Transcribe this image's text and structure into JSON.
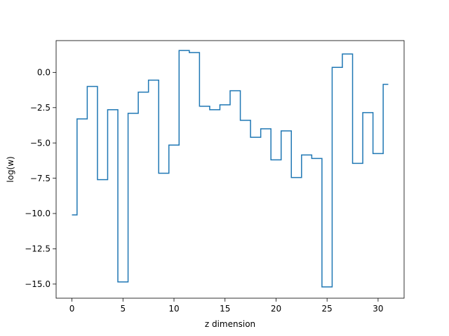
{
  "chart_data": {
    "type": "line",
    "drawstyle": "steps-mid",
    "title": "",
    "xlabel": "z dimension",
    "ylabel": "log(w)",
    "xlim": [
      -1.55,
      32.55
    ],
    "ylim": [
      -16.0,
      2.25
    ],
    "xticks": [
      0,
      5,
      10,
      15,
      20,
      25,
      30
    ],
    "xtick_labels": [
      "0",
      "5",
      "10",
      "15",
      "20",
      "25",
      "30"
    ],
    "yticks": [
      -15.0,
      -12.5,
      -10.0,
      -7.5,
      -5.0,
      -2.5,
      0.0
    ],
    "ytick_labels": [
      "−15.0",
      "−12.5",
      "−10.0",
      "−7.5",
      "−5.0",
      "−2.5",
      "0.0"
    ],
    "grid": false,
    "legend": "none",
    "line_color": "#1f77b4",
    "series": [
      {
        "x": [
          0,
          1,
          2,
          3,
          4,
          5,
          6,
          7,
          8,
          9,
          10,
          11,
          12,
          13,
          14,
          15,
          16,
          17,
          18,
          19,
          20,
          21,
          22,
          23,
          24,
          25,
          26,
          27,
          28,
          29,
          30,
          31
        ],
        "values": [
          -10.1,
          -3.3,
          -1.0,
          -7.6,
          -2.65,
          -14.85,
          -2.9,
          -1.4,
          -0.55,
          -7.15,
          -5.15,
          1.55,
          1.4,
          -2.4,
          -2.65,
          -2.3,
          -1.3,
          -3.4,
          -4.6,
          -4.0,
          -6.2,
          -4.15,
          -7.45,
          -5.85,
          -6.1,
          -15.2,
          0.35,
          1.3,
          -6.45,
          -2.85,
          -5.75,
          -0.85
        ]
      }
    ]
  }
}
